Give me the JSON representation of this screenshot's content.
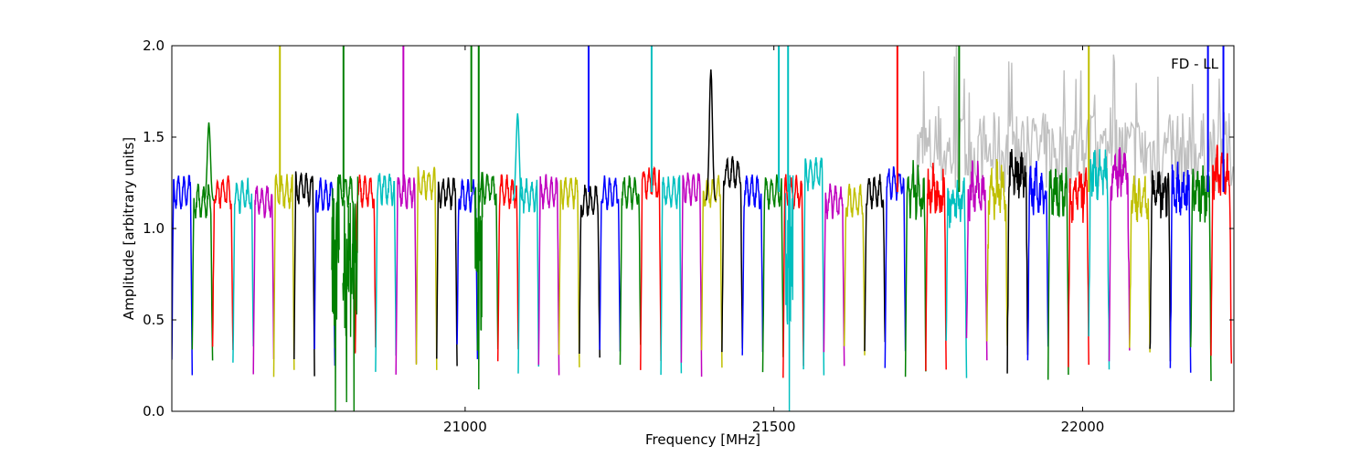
{
  "chart_data": {
    "type": "line",
    "title": "",
    "annotation": "FD - LL",
    "xlabel": "Frequency [MHz]",
    "ylabel": "Amplitude [arbitrary units]",
    "xlim": [
      20525,
      22245
    ],
    "ylim": [
      0.0,
      2.0
    ],
    "xticks": [
      21000,
      21500,
      22000
    ],
    "xtick_labels": [
      "21000",
      "21500",
      "22000"
    ],
    "yticks": [
      0.0,
      0.5,
      1.0,
      1.5,
      2.0
    ],
    "ytick_labels": [
      "0.0",
      "0.5",
      "1.0",
      "1.5",
      "2.0"
    ],
    "grid": false,
    "palette": [
      "#0000ff",
      "#008000",
      "#ff0000",
      "#00bfbf",
      "#bf00bf",
      "#bfbf00",
      "#000000"
    ],
    "background_series_color": "#c0c0c0",
    "background_range": [
      21730,
      22245
    ],
    "segment_width": 33,
    "first_segment_start": 20525,
    "segment_levels": [
      1.2,
      1.15,
      1.2,
      1.18,
      1.15,
      1.2,
      1.22,
      1.18,
      1.2,
      1.2,
      1.22,
      1.2,
      1.25,
      1.2,
      1.18,
      1.22,
      1.2,
      1.18,
      1.2,
      1.2,
      1.15,
      1.2,
      1.2,
      1.25,
      1.2,
      1.22,
      1.2,
      1.3,
      1.2,
      1.2,
      1.2,
      1.3,
      1.15,
      1.15,
      1.2,
      1.25,
      1.2,
      1.2,
      1.15,
      1.2,
      1.2,
      1.3,
      1.2,
      1.2,
      1.2,
      1.3,
      1.3,
      1.15,
      1.2,
      1.2,
      1.2,
      1.3
    ],
    "spikes": [
      {
        "x": 20700,
        "color": "#bfbf00"
      },
      {
        "x": 20803,
        "color": "#008000"
      },
      {
        "x": 20900,
        "color": "#bf00bf"
      },
      {
        "x": 21010,
        "color": "#008000"
      },
      {
        "x": 21022,
        "color": "#008000"
      },
      {
        "x": 21200,
        "color": "#0000ff"
      },
      {
        "x": 21302,
        "color": "#00bfbf"
      },
      {
        "x": 21508,
        "color": "#00bfbf"
      },
      {
        "x": 21523,
        "color": "#00bfbf"
      },
      {
        "x": 21700,
        "color": "#ff0000"
      },
      {
        "x": 21800,
        "color": "#008000"
      },
      {
        "x": 22010,
        "color": "#bfbf00"
      },
      {
        "x": 22203,
        "color": "#0000ff"
      },
      {
        "x": 22228,
        "color": "#0000ff"
      }
    ],
    "deep_dips": [
      {
        "x": 20790,
        "y": 0.0,
        "color": "#008000"
      },
      {
        "x": 20808,
        "y": 0.05,
        "color": "#008000"
      },
      {
        "x": 20820,
        "y": 0.0,
        "color": "#008000"
      },
      {
        "x": 21022,
        "y": 0.12,
        "color": "#008000"
      },
      {
        "x": 21525,
        "y": 0.0,
        "color": "#00bfbf"
      }
    ],
    "notable_peaks": [
      {
        "x": 20585,
        "y": 1.58,
        "color": "#008000"
      },
      {
        "x": 21085,
        "y": 1.63,
        "color": "#00bfbf"
      },
      {
        "x": 21398,
        "y": 1.87,
        "color": "#000000"
      }
    ]
  }
}
